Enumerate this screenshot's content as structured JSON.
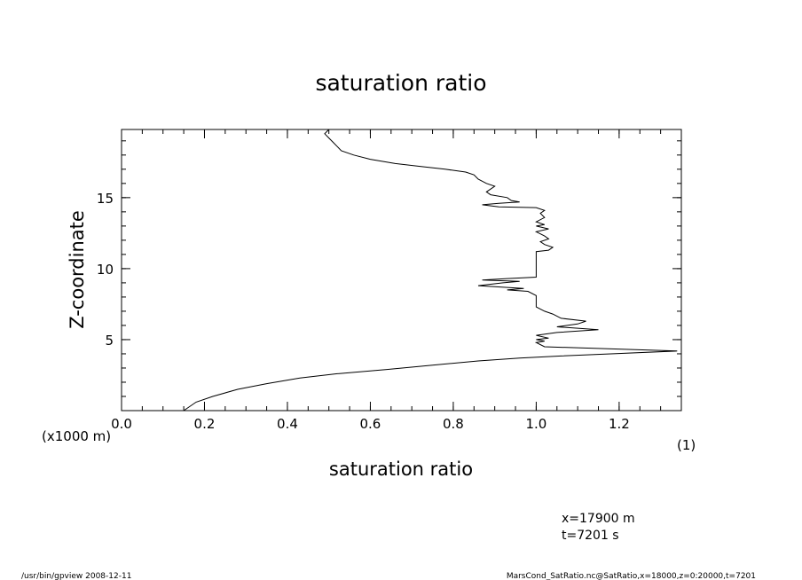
{
  "chart_data": {
    "type": "line",
    "title": "saturation ratio",
    "xlabel": "saturation ratio",
    "ylabel": "Z-coordinate",
    "x_unit": "(1)",
    "y_unit": "(x1000 m)",
    "xlim": [
      0.0,
      1.35
    ],
    "ylim": [
      0.0,
      19.8
    ],
    "x_ticks": [
      0.0,
      0.2,
      0.4,
      0.6,
      0.8,
      1.0,
      1.2
    ],
    "x_tick_labels": [
      "0.0",
      "0.2",
      "0.4",
      "0.6",
      "0.8",
      "1.0",
      "1.2"
    ],
    "y_ticks": [
      5,
      10,
      15
    ],
    "y_tick_labels": [
      "5",
      "10",
      "15"
    ],
    "grid": false,
    "series": [
      {
        "points": [
          [
            0.15,
            0.0
          ],
          [
            0.18,
            0.6
          ],
          [
            0.22,
            1.0
          ],
          [
            0.28,
            1.5
          ],
          [
            0.35,
            1.9
          ],
          [
            0.43,
            2.3
          ],
          [
            0.52,
            2.6
          ],
          [
            0.64,
            2.9
          ],
          [
            0.75,
            3.2
          ],
          [
            0.86,
            3.5
          ],
          [
            0.96,
            3.7
          ],
          [
            1.06,
            3.85
          ],
          [
            1.18,
            4.0
          ],
          [
            1.34,
            4.2
          ],
          [
            1.02,
            4.5
          ],
          [
            1.0,
            4.8
          ],
          [
            1.02,
            4.9
          ],
          [
            1.0,
            5.0
          ],
          [
            1.03,
            5.1
          ],
          [
            1.0,
            5.3
          ],
          [
            1.05,
            5.5
          ],
          [
            1.15,
            5.7
          ],
          [
            1.05,
            5.9
          ],
          [
            1.1,
            6.1
          ],
          [
            1.12,
            6.3
          ],
          [
            1.06,
            6.5
          ],
          [
            1.04,
            6.8
          ],
          [
            1.02,
            7.0
          ],
          [
            1.0,
            7.3
          ],
          [
            1.0,
            7.7
          ],
          [
            1.0,
            8.1
          ],
          [
            0.98,
            8.4
          ],
          [
            0.93,
            8.5
          ],
          [
            0.97,
            8.6
          ],
          [
            0.86,
            8.8
          ],
          [
            0.92,
            9.0
          ],
          [
            0.96,
            9.1
          ],
          [
            0.87,
            9.2
          ],
          [
            0.93,
            9.3
          ],
          [
            1.0,
            9.4
          ],
          [
            1.0,
            10.0
          ],
          [
            1.0,
            10.6
          ],
          [
            1.0,
            11.2
          ],
          [
            1.03,
            11.3
          ],
          [
            1.04,
            11.5
          ],
          [
            1.02,
            11.7
          ],
          [
            1.01,
            11.9
          ],
          [
            1.03,
            12.1
          ],
          [
            1.02,
            12.3
          ],
          [
            1.0,
            12.6
          ],
          [
            1.03,
            12.8
          ],
          [
            1.0,
            13.0
          ],
          [
            1.02,
            13.1
          ],
          [
            1.0,
            13.3
          ],
          [
            1.02,
            13.6
          ],
          [
            1.01,
            13.9
          ],
          [
            1.02,
            14.1
          ],
          [
            1.0,
            14.3
          ],
          [
            0.91,
            14.35
          ],
          [
            0.87,
            14.5
          ],
          [
            0.91,
            14.6
          ],
          [
            0.96,
            14.7
          ],
          [
            0.94,
            14.8
          ],
          [
            0.93,
            15.0
          ],
          [
            0.89,
            15.2
          ],
          [
            0.88,
            15.4
          ],
          [
            0.89,
            15.6
          ],
          [
            0.9,
            15.8
          ],
          [
            0.88,
            16.0
          ],
          [
            0.86,
            16.3
          ],
          [
            0.85,
            16.6
          ],
          [
            0.83,
            16.8
          ],
          [
            0.78,
            17.0
          ],
          [
            0.72,
            17.2
          ],
          [
            0.66,
            17.4
          ],
          [
            0.6,
            17.7
          ],
          [
            0.56,
            18.0
          ],
          [
            0.53,
            18.3
          ],
          [
            0.52,
            18.6
          ],
          [
            0.51,
            18.9
          ],
          [
            0.5,
            19.2
          ],
          [
            0.49,
            19.5
          ],
          [
            0.5,
            19.8
          ]
        ]
      }
    ]
  },
  "annotations": {
    "x_position": "x=17900  m",
    "time": "t=7201  s"
  },
  "footer": {
    "left": "/usr/bin/gpview   2008-12-11",
    "right": "MarsCond_SatRatio.nc@SatRatio,x=18000,z=0:20000,t=7201"
  }
}
